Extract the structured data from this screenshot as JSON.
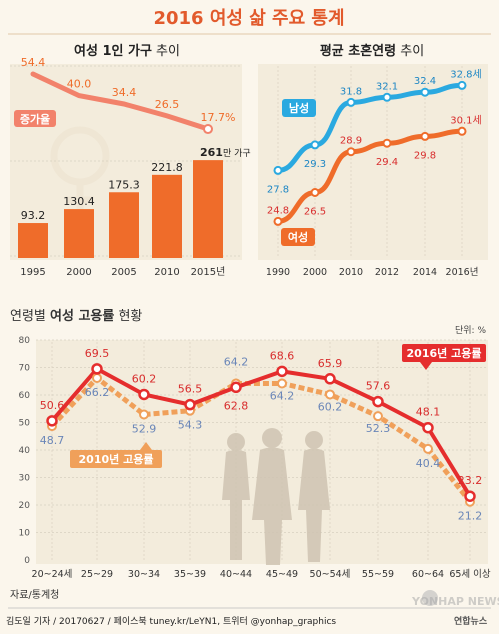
{
  "header": {
    "title": "2016 여성 삶 주요 통계"
  },
  "source": "자료/통계청",
  "credit": "김도일 기자 / 20170627 / 페이스북 tuney.kr/LeYN1, 트위터 @yonhap_graphics",
  "watermark": "YONHAP NEWS",
  "logo_text": "연합뉴스",
  "colors": {
    "orange": "#ef6c2a",
    "salmon": "#f2826b",
    "blue": "#2aa9e0",
    "red": "#e52d2d",
    "dotted": "#f0a05a",
    "grid": "#d8d0c0"
  },
  "chart_data": [
    {
      "type": "bar",
      "title_bold": "여성 1인 가구",
      "title_rest": " 추이",
      "categories": [
        "1995",
        "2000",
        "2005",
        "2010",
        "2015년"
      ],
      "series": [
        {
          "values": [
            93.2,
            130.4,
            175.3,
            221.8,
            261
          ]
        },
        {
          "name": "증가율",
          "values": [
            54.4,
            40.0,
            34.4,
            26.5,
            17.7
          ]
        }
      ],
      "bar_labels": [
        "93.2",
        "130.4",
        "175.3",
        "221.8",
        "261"
      ],
      "bar_unit": "만 가구",
      "rate_labels": [
        "54.4",
        "40.0",
        "34.4",
        "26.5",
        "17.7%"
      ],
      "ylim": [
        0,
        300
      ]
    },
    {
      "type": "line",
      "title_bold": "평균 초혼연령",
      "title_rest": " 추이",
      "x": [
        "1990",
        "2000",
        "2010",
        "2012",
        "2014",
        "2016년"
      ],
      "series": [
        {
          "name": "남성",
          "values": [
            27.8,
            29.3,
            31.8,
            32.1,
            32.4,
            32.8
          ],
          "labels": [
            "27.8",
            "29.3",
            "31.8",
            "32.1",
            "32.4",
            "32.8세"
          ]
        },
        {
          "name": "여성",
          "values": [
            24.8,
            26.5,
            28.9,
            29.4,
            29.8,
            30.1
          ],
          "labels": [
            "24.8",
            "26.5",
            "28.9",
            "29.4",
            "29.8",
            "30.1세"
          ]
        }
      ],
      "ylim": [
        23,
        34
      ]
    },
    {
      "type": "line",
      "title_pre": "연령별 ",
      "title_bold": "여성 고용률",
      "title_rest": " 현황",
      "unit": "단위: %",
      "x": [
        "20~24세",
        "25~29",
        "30~34",
        "35~39",
        "40~44",
        "45~49",
        "50~54세",
        "55~59",
        "60~64",
        "65세 이상"
      ],
      "series": [
        {
          "name": "2016년 고용률",
          "values": [
            50.6,
            69.5,
            60.2,
            56.5,
            62.8,
            68.6,
            65.9,
            57.6,
            48.1,
            23.2
          ],
          "labels": [
            "50.6",
            "69.5",
            "60.2",
            "56.5",
            "62.8",
            "68.6",
            "65.9",
            "57.6",
            "48.1",
            "23.2"
          ]
        },
        {
          "name": "2010년 고용률",
          "values": [
            48.7,
            66.2,
            52.9,
            54.3,
            64.2,
            64.2,
            60.2,
            52.3,
            40.4,
            21.2
          ],
          "labels": [
            "48.7",
            "66.2",
            "52.9",
            "54.3",
            "64.2",
            "64.2",
            "60.2",
            "52.3",
            "40.4",
            "21.2"
          ]
        }
      ],
      "yticks": [
        "0",
        "10",
        "20",
        "30",
        "40",
        "50",
        "60",
        "70",
        "80"
      ],
      "ylim": [
        0,
        80
      ]
    }
  ]
}
